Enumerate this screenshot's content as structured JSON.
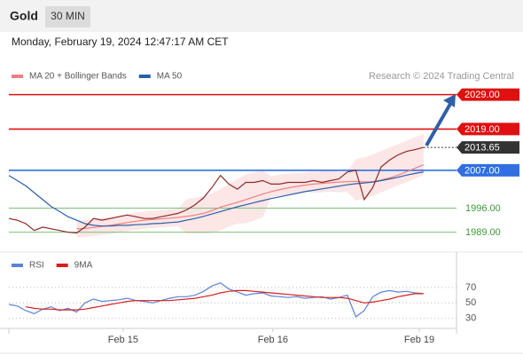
{
  "header": {
    "title": "Gold",
    "interval": "30 MIN",
    "date": "Monday, February 19, 2024 12:47:17 AM CET"
  },
  "source": "Research © 2024 Trading Central",
  "chart_data": [
    {
      "type": "line",
      "panel": "price",
      "ylim": [
        1983.5,
        2032
      ],
      "xlim": [
        0,
        52.9
      ],
      "xticks": [
        {
          "value": 13.5,
          "label": "Feb 15"
        },
        {
          "value": 31.2,
          "label": "Feb 16"
        },
        {
          "value": 48.5,
          "label": "Feb 19"
        }
      ],
      "levels": [
        {
          "value": 2029,
          "label": "2029.00",
          "color": "#e01010",
          "line": "solid",
          "label_style": "box"
        },
        {
          "value": 2019,
          "label": "2019.00",
          "color": "#e01010",
          "line": "solid",
          "label_style": "box"
        },
        {
          "value": 2013.65,
          "color": "#333333",
          "line": "dotted",
          "label_style": "box"
        },
        {
          "value": 2007,
          "label": "2007.00",
          "color": "#2f6fe0",
          "line": "solid",
          "label_style": "box"
        },
        {
          "value": 1996,
          "label": "1996.00",
          "color": "#7cc07c",
          "line": "solid",
          "label_style": "text"
        },
        {
          "value": 1989,
          "label": "1989.00",
          "color": "#7cc07c",
          "line": "solid",
          "label_style": "text"
        }
      ],
      "band": {
        "name": "MA 20 + Bollinger Bands",
        "color": "#fde0e0",
        "upper": [
          null,
          null,
          null,
          null,
          null,
          null,
          null,
          null,
          1992.5,
          1992.6,
          1992.9,
          1993.2,
          1993.5,
          1993.9,
          1994.3,
          1994.7,
          1995.0,
          1995.2,
          1995.4,
          1995.6,
          1995.8,
          1998.6,
          1999.0,
          1999.5,
          2000.3,
          2001.5,
          2003.0,
          2004.5,
          2005.8,
          2006.4,
          2006.9,
          2005.3,
          2005.7,
          2006.0,
          2006.2,
          2006.4,
          2006.6,
          2006.7,
          2006.8,
          2006.6,
          2006.7,
          2010.2,
          2010.8,
          2011.6,
          2012.6,
          2013.6,
          2014.6,
          2015.6,
          2016.6,
          2017.6
        ],
        "lower": [
          null,
          null,
          null,
          null,
          null,
          null,
          null,
          null,
          1987.5,
          1987.6,
          1987.9,
          1988.2,
          1988.5,
          1988.9,
          1989.3,
          1989.7,
          1990.0,
          1990.2,
          1990.4,
          1990.6,
          1990.8,
          1988.6,
          1988.6,
          1988.6,
          1988.8,
          1989.5,
          1990.6,
          1991.5,
          1991.6,
          1992.4,
          1993.3,
          1999.3,
          1999.5,
          1999.8,
          2000.4,
          2000.8,
          2000.4,
          2000.6,
          2000.8,
          2000.6,
          2000.7,
          1998.2,
          1998.8,
          1999.6,
          2000.6,
          2001.6,
          2002.6,
          2003.6,
          2004.6,
          2005.6
        ]
      },
      "series": [
        {
          "name": "MA 20 + Bollinger Bands",
          "color": "#f08080",
          "values": [
            null,
            null,
            null,
            null,
            null,
            null,
            null,
            null,
            1990.0,
            1990.1,
            1990.4,
            1990.7,
            1991.0,
            1991.4,
            1991.8,
            1992.2,
            1992.5,
            1992.7,
            1992.9,
            1993.1,
            1993.3,
            1993.6,
            1994.0,
            1994.5,
            1995.3,
            1996.3,
            1997.0,
            1997.7,
            1998.5,
            1999.3,
            2000.1,
            2000.8,
            2001.4,
            2001.9,
            2002.3,
            2002.7,
            2003.0,
            2003.2,
            2003.4,
            2003.6,
            2003.7,
            2003.8,
            2003.6,
            2003.7,
            2004.2,
            2004.8,
            2005.6,
            2006.6,
            2007.6,
            2008.6
          ]
        },
        {
          "name": "MA 50",
          "color": "#2a5ea8",
          "values": [
            2005.5,
            2004.0,
            2002.5,
            2000.5,
            1998.5,
            1996.5,
            1995.0,
            1993.5,
            1992.5,
            1991.5,
            1991.0,
            1990.8,
            1990.8,
            1991.0,
            1991.0,
            1991.2,
            1991.3,
            1991.5,
            1991.6,
            1991.8,
            1992.0,
            1992.5,
            1993.0,
            1993.6,
            1994.3,
            1995.0,
            1995.7,
            1996.4,
            1997.0,
            1997.6,
            1998.2,
            1998.8,
            1999.3,
            1999.8,
            2000.3,
            2000.8,
            2001.2,
            2001.6,
            2002.0,
            2002.4,
            2002.8,
            2003.1,
            2003.3,
            2003.6,
            2004.0,
            2004.5,
            2005.0,
            2005.6,
            2006.1,
            2006.5
          ]
        },
        {
          "color": "#8b2a2a",
          "values": [
            1993.0,
            1992.5,
            1991.5,
            1989.5,
            1990.5,
            1990.0,
            1989.5,
            1989.0,
            1988.8,
            1990.5,
            1993.0,
            1992.5,
            1993.0,
            1993.5,
            1994.0,
            1993.5,
            1993.0,
            1993.0,
            1993.5,
            1994.0,
            1994.5,
            1995.5,
            1997.0,
            1999.0,
            2002.0,
            2005.5,
            2003.0,
            2001.5,
            2003.5,
            2003.5,
            2004.0,
            2003.0,
            2003.0,
            2003.5,
            2003.5,
            2003.5,
            2004.0,
            2003.5,
            2004.0,
            2004.5,
            2006.5,
            2007.0,
            1998.5,
            2002.0,
            2008.0,
            2010.0,
            2011.5,
            2012.5,
            2013.0,
            2013.65
          ]
        }
      ]
    },
    {
      "type": "line",
      "panel": "rsi",
      "ylim": [
        17,
        86
      ],
      "xlim": [
        0,
        52.9
      ],
      "yticks": [
        70,
        50,
        30
      ],
      "series": [
        {
          "name": "RSI",
          "color": "#5b84d8",
          "values": [
            48,
            46,
            40,
            36,
            42,
            45,
            40,
            43,
            38,
            50,
            55,
            52,
            53,
            54,
            56,
            53,
            52,
            50,
            53,
            56,
            58,
            58,
            60,
            65,
            72,
            76,
            68,
            64,
            60,
            62,
            63,
            59,
            58,
            57,
            58,
            56,
            57,
            58,
            55,
            57,
            60,
            32,
            40,
            58,
            64,
            66,
            64,
            65,
            63,
            62
          ]
        },
        {
          "name": "9MA",
          "color": "#d81e1e",
          "values": [
            null,
            null,
            45,
            43,
            42,
            42,
            41,
            41,
            41,
            42,
            44,
            46,
            48,
            50,
            52,
            53,
            53,
            53,
            53,
            53,
            54,
            55,
            56,
            58,
            60,
            63,
            65,
            66,
            66,
            65,
            64,
            63,
            62,
            61,
            60,
            59,
            58,
            57,
            57,
            57,
            56,
            53,
            50,
            51,
            53,
            55,
            58,
            60,
            62,
            62
          ]
        }
      ]
    }
  ]
}
